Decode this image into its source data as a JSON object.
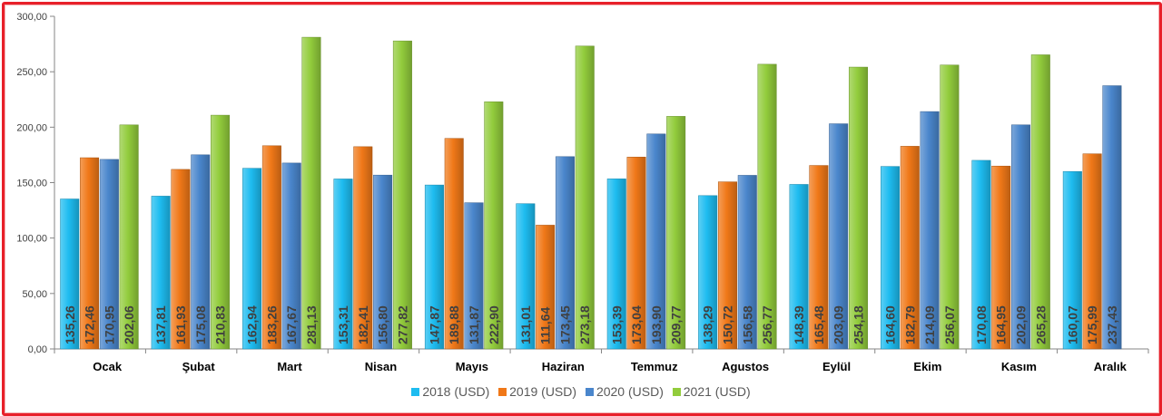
{
  "colors": {
    "s2018": "#1ebcf0",
    "s2019": "#f07818",
    "s2020": "#4a86cc",
    "s2021": "#92cc3c",
    "frame": "#e8202a"
  },
  "chart_data": {
    "type": "bar",
    "title": "",
    "xlabel": "",
    "ylabel": "",
    "ylim": [
      0,
      300
    ],
    "yticks": [
      "0,00",
      "50,00",
      "100,00",
      "150,00",
      "200,00",
      "250,00",
      "300,00"
    ],
    "grid": false,
    "legend_position": "bottom",
    "categories": [
      "Ocak",
      "Şubat",
      "Mart",
      "Nisan",
      "Mayıs",
      "Haziran",
      "Temmuz",
      "Agustos",
      "Eylül",
      "Ekim",
      "Kasım",
      "Aralık"
    ],
    "series": [
      {
        "name": "2018 (USD)",
        "values": [
          135.26,
          137.81,
          162.94,
          153.31,
          147.87,
          131.01,
          153.39,
          138.29,
          148.39,
          164.6,
          170.08,
          160.07
        ],
        "labels": [
          "135,26",
          "137,81",
          "162,94",
          "153,31",
          "147,87",
          "131,01",
          "153,39",
          "138,29",
          "148,39",
          "164,60",
          "170,08",
          "160,07"
        ]
      },
      {
        "name": "2019 (USD)",
        "values": [
          172.46,
          161.93,
          183.26,
          182.41,
          189.88,
          111.64,
          173.04,
          150.72,
          165.48,
          182.79,
          164.95,
          175.99
        ],
        "labels": [
          "172,46",
          "161,93",
          "183,26",
          "182,41",
          "189,88",
          "111,64",
          "173,04",
          "150,72",
          "165,48",
          "182,79",
          "164,95",
          "175,99"
        ]
      },
      {
        "name": "2020 (USD)",
        "values": [
          170.95,
          175.08,
          167.67,
          156.8,
          131.87,
          173.45,
          193.9,
          156.58,
          203.09,
          214.09,
          202.09,
          237.43
        ],
        "labels": [
          "170,95",
          "175,08",
          "167,67",
          "156,80",
          "131,87",
          "173,45",
          "193,90",
          "156,58",
          "203,09",
          "214,09",
          "202,09",
          "237,43"
        ]
      },
      {
        "name": "2021 (USD)",
        "values": [
          202.06,
          210.83,
          281.13,
          277.82,
          222.9,
          273.18,
          209.77,
          256.77,
          254.18,
          256.07,
          265.28,
          null
        ],
        "labels": [
          "202,06",
          "210,83",
          "281,13",
          "277,82",
          "222,90",
          "273,18",
          "209,77",
          "256,77",
          "254,18",
          "256,07",
          "265,28",
          null
        ]
      }
    ]
  }
}
